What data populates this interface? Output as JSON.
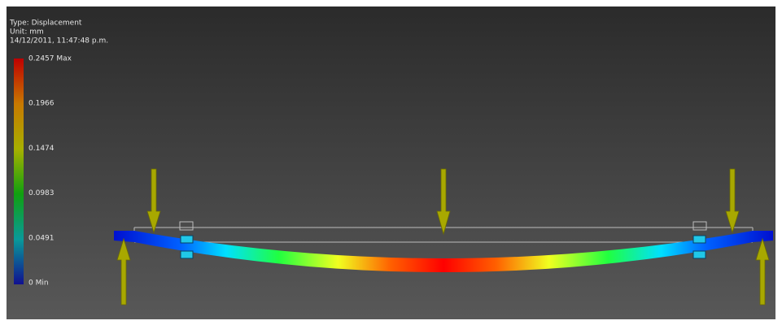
{
  "legend": {
    "type": "Type: Displacement",
    "unit": "Unit: mm",
    "timestamp": "14/12/2011, 11:47:48 p.m.",
    "scale": [
      "0.2457 Max",
      "0.1966",
      "0.1474",
      "0.0983",
      "0.0491",
      "0 Min"
    ]
  }
}
